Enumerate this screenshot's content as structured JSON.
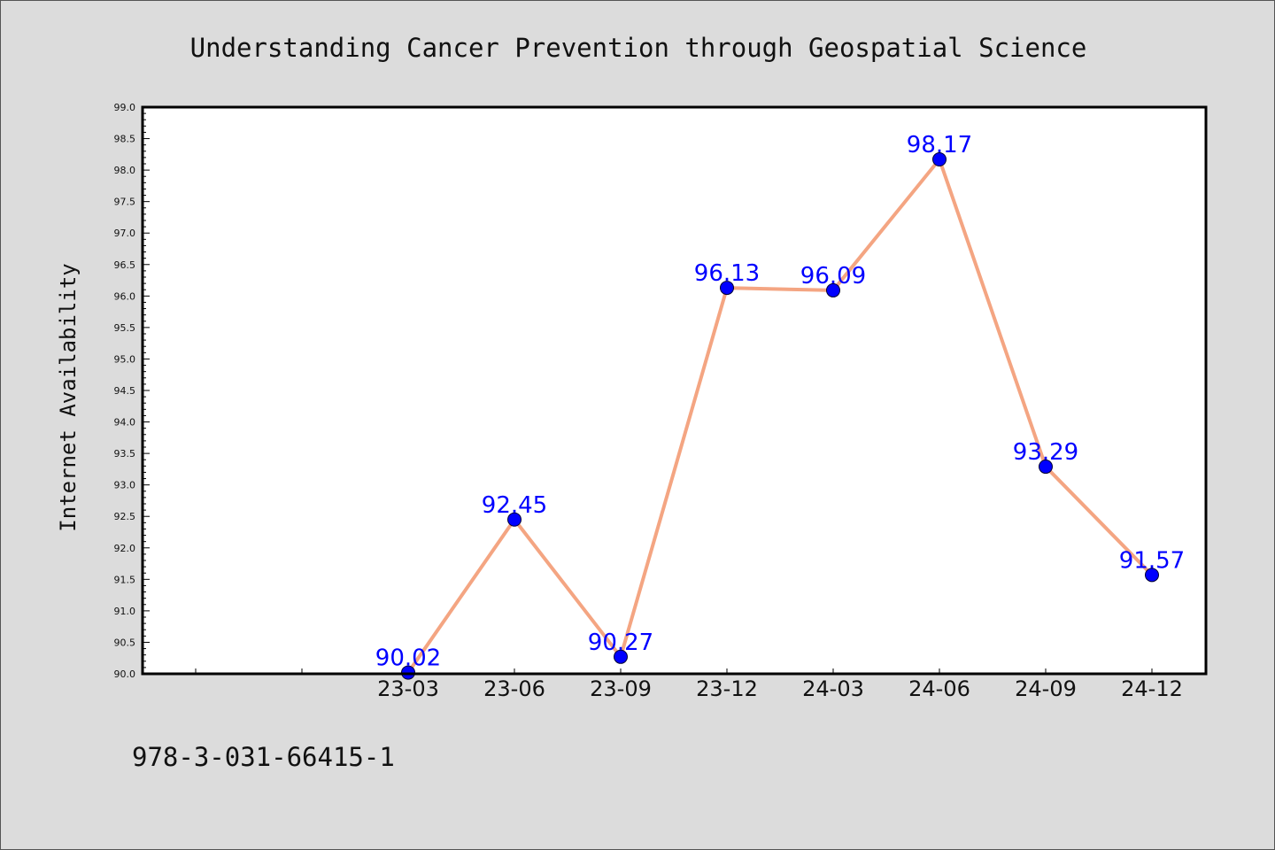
{
  "footer_text": "978-3-031-66415-1",
  "colors": {
    "background": "#dcdcdc",
    "plot_background": "#ffffff",
    "line": "#f4a582",
    "marker": "#0000ff",
    "label": "#0000ff",
    "axis": "#000000"
  },
  "chart_data": {
    "type": "line",
    "title": "Understanding Cancer Prevention through Geospatial Science",
    "xlabel": "",
    "ylabel": "Internet Availability",
    "categories": [
      "23-03",
      "23-06",
      "23-09",
      "23-12",
      "24-03",
      "24-06",
      "24-09",
      "24-12"
    ],
    "series": [
      {
        "values": [
          90.02,
          92.45,
          90.27,
          96.13,
          96.09,
          98.17,
          93.29,
          91.57
        ],
        "line_color": "#f4a582",
        "marker_color": "#0000ff"
      }
    ],
    "data_labels": [
      "90.02",
      "92.45",
      "90.27",
      "96.13",
      "96.09",
      "98.17",
      "93.29",
      "91.57"
    ],
    "ylim": [
      90.0,
      99.0
    ],
    "y_major_ticks": [
      "90.0",
      "90.5",
      "91.0",
      "91.5",
      "92.0",
      "92.5",
      "93.0",
      "93.5",
      "94.0",
      "94.5",
      "95.0",
      "95.5",
      "96.0",
      "96.5",
      "97.0",
      "97.5",
      "98.0",
      "98.5",
      "99.0"
    ],
    "x_leading_empty_slots": 2,
    "grid": false,
    "legend": "none"
  }
}
